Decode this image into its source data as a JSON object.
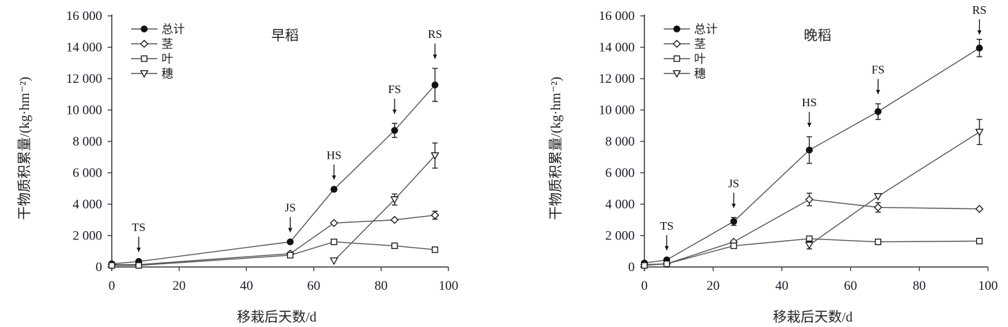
{
  "chart_data": [
    {
      "type": "line",
      "title": "早稻",
      "xlabel": "移栽后天数/d",
      "ylabel": "干物质积累量/(kg·hm⁻²)",
      "xlim": [
        0,
        100
      ],
      "ylim": [
        0,
        16000
      ],
      "xticks": [
        "0",
        "20",
        "40",
        "60",
        "80",
        "100"
      ],
      "yticks": [
        "0",
        "2 000",
        "4 000",
        "6 000",
        "8 000",
        "10 000",
        "12 000",
        "14 000",
        "16 000"
      ],
      "legend_position": "top-left",
      "series": [
        {
          "name": "总计",
          "marker": "filled-circle",
          "x": [
            0,
            8,
            53,
            66,
            84,
            96
          ],
          "y": [
            200,
            350,
            1600,
            4950,
            8700,
            11600
          ],
          "err": [
            0,
            0,
            0,
            0,
            450,
            1050
          ]
        },
        {
          "name": "茎",
          "marker": "open-diamond",
          "x": [
            0,
            8,
            53,
            66,
            84,
            96
          ],
          "y": [
            150,
            150,
            850,
            2800,
            3000,
            3300
          ],
          "err": [
            0,
            0,
            0,
            0,
            0,
            250
          ]
        },
        {
          "name": "叶",
          "marker": "open-square",
          "x": [
            0,
            8,
            53,
            66,
            84,
            96
          ],
          "y": [
            100,
            100,
            750,
            1600,
            1350,
            1100
          ],
          "err": [
            0,
            0,
            0,
            0,
            0,
            0
          ]
        },
        {
          "name": "穗",
          "marker": "open-triangle-down",
          "x": [
            66,
            84,
            96
          ],
          "y": [
            400,
            4300,
            7100
          ],
          "err": [
            0,
            350,
            800
          ]
        }
      ],
      "annotations": [
        {
          "text": "TS",
          "x": 8
        },
        {
          "text": "JS",
          "x": 53
        },
        {
          "text": "HS",
          "x": 66
        },
        {
          "text": "FS",
          "x": 84
        },
        {
          "text": "RS",
          "x": 96
        }
      ]
    },
    {
      "type": "line",
      "title": "晚稻",
      "xlabel": "移栽后天数/d",
      "ylabel": "干物质积累量/(kg·hm⁻²)",
      "xlim": [
        0,
        100
      ],
      "ylim": [
        0,
        16000
      ],
      "xticks": [
        "0",
        "20",
        "40",
        "60",
        "80",
        "100"
      ],
      "yticks": [
        "0",
        "2 000",
        "4 000",
        "6 000",
        "8 000",
        "10 000",
        "12 000",
        "14 000",
        "16 000"
      ],
      "legend_position": "top-left",
      "series": [
        {
          "name": "总计",
          "marker": "filled-circle",
          "x": [
            0,
            6.5,
            26,
            48,
            68,
            97.5
          ],
          "y": [
            250,
            450,
            2900,
            7450,
            9900,
            13950
          ],
          "err": [
            0,
            0,
            250,
            850,
            500,
            550
          ]
        },
        {
          "name": "茎",
          "marker": "open-diamond",
          "x": [
            0,
            6.5,
            26,
            48,
            68,
            97.5
          ],
          "y": [
            150,
            200,
            1600,
            4300,
            3800,
            3700
          ],
          "err": [
            0,
            0,
            0,
            400,
            300,
            0
          ]
        },
        {
          "name": "叶",
          "marker": "open-square",
          "x": [
            0,
            6.5,
            26,
            48,
            68,
            97.5
          ],
          "y": [
            100,
            200,
            1350,
            1800,
            1600,
            1650
          ],
          "err": [
            0,
            0,
            0,
            0,
            0,
            0
          ]
        },
        {
          "name": "穗",
          "marker": "open-triangle-down",
          "x": [
            48,
            68,
            97.5
          ],
          "y": [
            1400,
            4500,
            8600
          ],
          "err": [
            250,
            0,
            800
          ]
        }
      ],
      "annotations": [
        {
          "text": "TS",
          "x": 6.5
        },
        {
          "text": "JS",
          "x": 26
        },
        {
          "text": "HS",
          "x": 48
        },
        {
          "text": "FS",
          "x": 68
        },
        {
          "text": "RS",
          "x": 97.5
        }
      ]
    }
  ],
  "colors": {
    "line": "#555555",
    "marker": "#111111",
    "ylabel_accent": "#2a7f9a"
  }
}
